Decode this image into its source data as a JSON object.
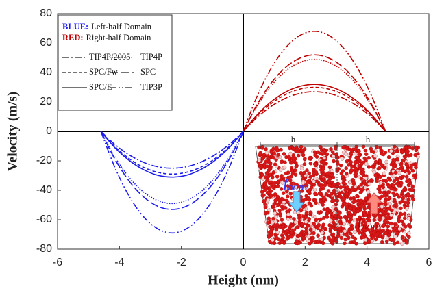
{
  "chart_data": {
    "type": "line",
    "x_label": "Height (nm)",
    "y_label": "Velocity (m/s)",
    "xlim": [
      -6,
      6
    ],
    "xticks": [
      -6,
      -4,
      -2,
      0,
      2,
      4,
      6
    ],
    "ylim": [
      -80,
      80
    ],
    "yticks": [
      -80,
      -60,
      -40,
      -20,
      0,
      20,
      40,
      60,
      80
    ],
    "x": [
      -4.6,
      -4.14,
      -3.68,
      -3.22,
      -2.76,
      -2.3,
      -1.84,
      -1.38,
      -0.92,
      -0.46,
      0,
      0.46,
      0.92,
      1.38,
      1.84,
      2.3,
      2.76,
      3.22,
      3.68,
      4.14,
      4.6
    ],
    "legend": {
      "position": "upper left",
      "domains": [
        {
          "label": "BLUE:",
          "text": "Left-half Domain",
          "color": "#1c1cf0"
        },
        {
          "label": "RED:",
          "text": "Right-half Domain",
          "color": "#c00000"
        }
      ]
    },
    "series": [
      {
        "name": "TIP4P/2005",
        "color": "#1c1cf0",
        "dash": "10,3,2,3",
        "values": [
          0,
          -9,
          -16,
          -21,
          -24,
          -25,
          -24,
          -21,
          -16,
          -9,
          0,
          null,
          null,
          null,
          null,
          null,
          null,
          null,
          null,
          null,
          null
        ]
      },
      {
        "name": "TIP4P",
        "color": "#1c1cf0",
        "dash": "1.5,2",
        "values": [
          0,
          -17.6,
          -31.4,
          -41.2,
          -47,
          -49,
          -47,
          -41.2,
          -31.4,
          -17.6,
          0,
          null,
          null,
          null,
          null,
          null,
          null,
          null,
          null,
          null,
          null
        ]
      },
      {
        "name": "SPC/Fw",
        "color": "#1c1cf0",
        "dash": "5,3",
        "values": [
          0,
          -10.4,
          -18.6,
          -24.4,
          -27.8,
          -29,
          -27.8,
          -24.4,
          -18.6,
          -10.4,
          0,
          null,
          null,
          null,
          null,
          null,
          null,
          null,
          null,
          null,
          null
        ]
      },
      {
        "name": "SPC",
        "color": "#1c1cf0",
        "dash": "12,4",
        "values": [
          0,
          -19.1,
          -33.9,
          -44.5,
          -50.9,
          -53,
          -50.9,
          -44.5,
          -33.9,
          -19.1,
          0,
          null,
          null,
          null,
          null,
          null,
          null,
          null,
          null,
          null,
          null
        ]
      },
      {
        "name": "SPC/E",
        "color": "#1c1cf0",
        "dash": "none",
        "values": [
          0,
          -11.2,
          -19.8,
          -26,
          -29.8,
          -31,
          -29.8,
          -26,
          -19.8,
          -11.2,
          0,
          null,
          null,
          null,
          null,
          null,
          null,
          null,
          null,
          null,
          null
        ]
      },
      {
        "name": "TIP3P",
        "color": "#1c1cf0",
        "dash": "10,3,2,3,2,3",
        "values": [
          0,
          -24.8,
          -44.2,
          -58,
          -66.2,
          -69,
          -66.2,
          -58,
          -44.2,
          -24.8,
          0,
          null,
          null,
          null,
          null,
          null,
          null,
          null,
          null,
          null,
          null
        ]
      },
      {
        "name": "TIP4P/2005",
        "color": "#c00000",
        "dash": "10,3,2,3",
        "values": [
          null,
          null,
          null,
          null,
          null,
          null,
          null,
          null,
          null,
          null,
          0,
          9.7,
          17.3,
          22.7,
          25.9,
          27,
          25.9,
          22.7,
          17.3,
          9.7,
          0
        ]
      },
      {
        "name": "TIP4P",
        "color": "#c00000",
        "dash": "1.5,2",
        "values": [
          null,
          null,
          null,
          null,
          null,
          null,
          null,
          null,
          null,
          null,
          0,
          17.6,
          31.4,
          41.2,
          47,
          49,
          47,
          41.2,
          31.4,
          17.6,
          0
        ]
      },
      {
        "name": "SPC/Fw",
        "color": "#c00000",
        "dash": "5,3",
        "values": [
          null,
          null,
          null,
          null,
          null,
          null,
          null,
          null,
          null,
          null,
          0,
          10.8,
          19.2,
          25.2,
          28.8,
          30,
          28.8,
          25.2,
          19.2,
          10.8,
          0
        ]
      },
      {
        "name": "SPC",
        "color": "#c00000",
        "dash": "12,4",
        "values": [
          null,
          null,
          null,
          null,
          null,
          null,
          null,
          null,
          null,
          null,
          0,
          18.7,
          33.3,
          43.7,
          49.9,
          52,
          49.9,
          43.7,
          33.3,
          18.7,
          0
        ]
      },
      {
        "name": "SPC/E",
        "color": "#c00000",
        "dash": "none",
        "values": [
          null,
          null,
          null,
          null,
          null,
          null,
          null,
          null,
          null,
          null,
          0,
          11.5,
          20.5,
          26.9,
          30.7,
          32,
          30.7,
          26.9,
          20.5,
          11.5,
          0
        ]
      },
      {
        "name": "TIP3P",
        "color": "#c00000",
        "dash": "10,3,2,3,2,3",
        "values": [
          null,
          null,
          null,
          null,
          null,
          null,
          null,
          null,
          null,
          null,
          0,
          24.5,
          43.5,
          57.1,
          65.3,
          68,
          65.3,
          57.1,
          43.5,
          24.5,
          0
        ]
      }
    ],
    "inset": {
      "width_labels": [
        "h",
        "h"
      ],
      "force_labels": [
        {
          "symbol": "f",
          "subscript": "BODY",
          "color": "#2a3cff"
        },
        {
          "symbol": "f",
          "subscript": "BODY",
          "color": "#c00000"
        }
      ]
    }
  }
}
